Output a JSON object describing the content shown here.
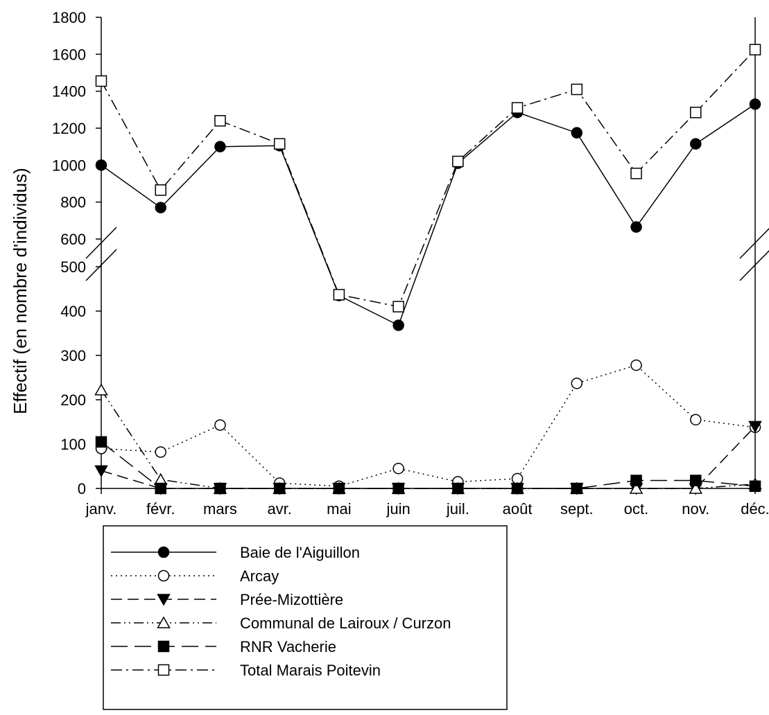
{
  "chart_data": {
    "type": "line",
    "title": "",
    "xlabel": "",
    "ylabel": "Effectif (en nombre d'individus)",
    "categories": [
      "janv.",
      "févr.",
      "mars",
      "avr.",
      "mai",
      "juin",
      "juil.",
      "août",
      "sept.",
      "oct.",
      "nov.",
      "déc."
    ],
    "axis_break": {
      "lower_range": [
        0,
        500
      ],
      "upper_range": [
        600,
        1800
      ]
    },
    "yticks_lower": [
      "0",
      "100",
      "200",
      "300",
      "400",
      "500"
    ],
    "yticks_upper": [
      "600",
      "800",
      "1000",
      "1200",
      "1400",
      "1600",
      "1800"
    ],
    "grid": false,
    "legend_position": "bottom-left",
    "series": [
      {
        "name": "Baie de l'Aiguillon",
        "marker": "filled-circle",
        "dash": "solid",
        "values": [
          1000,
          770,
          1100,
          1105,
          435,
          368,
          1010,
          1285,
          1175,
          665,
          1115,
          1330
        ]
      },
      {
        "name": "Arcay",
        "marker": "open-circle",
        "dash": "dotted",
        "values": [
          90,
          82,
          143,
          12,
          5,
          45,
          15,
          22,
          237,
          278,
          155,
          138
        ]
      },
      {
        "name": "Prée-Mizottière",
        "marker": "filled-triangle-down",
        "dash": "dashed",
        "values": [
          40,
          0,
          0,
          0,
          0,
          0,
          0,
          0,
          0,
          0,
          0,
          140
        ]
      },
      {
        "name": "Communal de Lairoux / Curzon",
        "marker": "open-triangle-up",
        "dash": "dash-dot-dot",
        "values": [
          222,
          20,
          0,
          0,
          0,
          0,
          0,
          0,
          0,
          0,
          0,
          10
        ]
      },
      {
        "name": "RNR Vacherie",
        "marker": "filled-square",
        "dash": "long-dash",
        "values": [
          105,
          0,
          0,
          0,
          0,
          0,
          0,
          0,
          0,
          18,
          18,
          5
        ]
      },
      {
        "name": "Total Marais Poitevin",
        "marker": "open-square",
        "dash": "dash-dot",
        "values": [
          1455,
          865,
          1240,
          1115,
          437,
          410,
          1020,
          1310,
          1410,
          955,
          1285,
          1625
        ]
      }
    ]
  }
}
